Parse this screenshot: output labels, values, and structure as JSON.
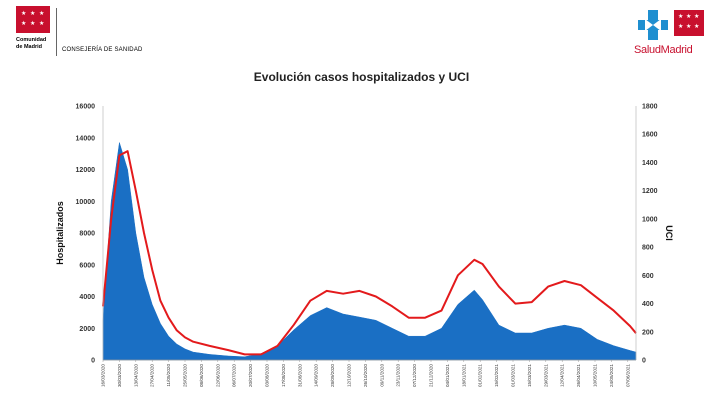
{
  "header": {
    "org_name_line1": "Comunidad",
    "org_name_line2": "de Madrid",
    "department": "CONSEJERÍA DE SANIDAD",
    "brand": "SaludMadrid",
    "brand_color": "#c8102e",
    "cross_color": "#1f8fd0",
    "cm_logo_icon": "madrid-flag-stars-icon",
    "sm_logo_icon": "salud-madrid-cross-icon"
  },
  "chart_data": {
    "type": "area+line",
    "title": "Evolución casos hospitalizados y UCI",
    "ylabel_left": "Hospitalizados",
    "ylabel_right": "UCI",
    "ylim_left": [
      0,
      16000
    ],
    "ylim_right": [
      0,
      1800
    ],
    "yticks_left": [
      "0",
      "2000",
      "4000",
      "6000",
      "8000",
      "10000",
      "12000",
      "14000",
      "16000"
    ],
    "yticks_right": [
      "0",
      "200",
      "400",
      "600",
      "800",
      "1000",
      "1200",
      "1400",
      "1600",
      "1800"
    ],
    "x_range": [
      "16/03/2020",
      "14/06/2021"
    ],
    "grid": false,
    "legend": "none",
    "series": [
      {
        "axis": "left",
        "kind": "area",
        "color": "#1a6fc4",
        "points": [
          [
            "16/03/2020",
            2500
          ],
          [
            "23/03/2020",
            10000
          ],
          [
            "30/03/2020",
            13700
          ],
          [
            "06/04/2020",
            12000
          ],
          [
            "13/04/2020",
            8000
          ],
          [
            "20/04/2020",
            5200
          ],
          [
            "27/04/2020",
            3500
          ],
          [
            "04/05/2020",
            2300
          ],
          [
            "11/05/2020",
            1500
          ],
          [
            "18/05/2020",
            1000
          ],
          [
            "25/05/2020",
            700
          ],
          [
            "01/06/2020",
            500
          ],
          [
            "15/06/2020",
            350
          ],
          [
            "01/07/2020",
            250
          ],
          [
            "15/07/2020",
            200
          ],
          [
            "29/07/2020",
            400
          ],
          [
            "12/08/2020",
            900
          ],
          [
            "26/08/2020",
            1900
          ],
          [
            "09/09/2020",
            2800
          ],
          [
            "23/09/2020",
            3300
          ],
          [
            "07/10/2020",
            2900
          ],
          [
            "21/10/2020",
            2700
          ],
          [
            "04/11/2020",
            2500
          ],
          [
            "18/11/2020",
            2000
          ],
          [
            "02/12/2020",
            1500
          ],
          [
            "16/12/2020",
            1500
          ],
          [
            "30/12/2020",
            2000
          ],
          [
            "13/01/2021",
            3500
          ],
          [
            "27/01/2021",
            4400
          ],
          [
            "03/02/2021",
            3800
          ],
          [
            "17/02/2021",
            2200
          ],
          [
            "03/03/2021",
            1700
          ],
          [
            "17/03/2021",
            1700
          ],
          [
            "31/03/2021",
            2000
          ],
          [
            "14/04/2021",
            2200
          ],
          [
            "28/04/2021",
            2000
          ],
          [
            "12/05/2021",
            1300
          ],
          [
            "26/05/2021",
            900
          ],
          [
            "09/06/2021",
            600
          ],
          [
            "14/06/2021",
            500
          ]
        ]
      },
      {
        "axis": "right",
        "kind": "line",
        "color": "#e31a1c",
        "points": [
          [
            "16/03/2020",
            380
          ],
          [
            "23/03/2020",
            1000
          ],
          [
            "30/03/2020",
            1450
          ],
          [
            "06/04/2020",
            1480
          ],
          [
            "13/04/2020",
            1200
          ],
          [
            "20/04/2020",
            900
          ],
          [
            "27/04/2020",
            640
          ],
          [
            "04/05/2020",
            420
          ],
          [
            "11/05/2020",
            300
          ],
          [
            "18/05/2020",
            210
          ],
          [
            "25/05/2020",
            160
          ],
          [
            "01/06/2020",
            130
          ],
          [
            "15/06/2020",
            100
          ],
          [
            "01/07/2020",
            70
          ],
          [
            "15/07/2020",
            40
          ],
          [
            "29/07/2020",
            40
          ],
          [
            "12/08/2020",
            100
          ],
          [
            "26/08/2020",
            250
          ],
          [
            "09/09/2020",
            420
          ],
          [
            "23/09/2020",
            490
          ],
          [
            "07/10/2020",
            470
          ],
          [
            "21/10/2020",
            490
          ],
          [
            "04/11/2020",
            450
          ],
          [
            "18/11/2020",
            380
          ],
          [
            "02/12/2020",
            300
          ],
          [
            "16/12/2020",
            300
          ],
          [
            "30/12/2020",
            350
          ],
          [
            "13/01/2021",
            600
          ],
          [
            "27/01/2021",
            710
          ],
          [
            "03/02/2021",
            680
          ],
          [
            "17/02/2021",
            520
          ],
          [
            "03/03/2021",
            400
          ],
          [
            "17/03/2021",
            410
          ],
          [
            "31/03/2021",
            520
          ],
          [
            "14/04/2021",
            560
          ],
          [
            "28/04/2021",
            530
          ],
          [
            "12/05/2021",
            440
          ],
          [
            "26/05/2021",
            350
          ],
          [
            "09/06/2021",
            240
          ],
          [
            "14/06/2021",
            190
          ]
        ]
      }
    ],
    "x_tick_labels": [
      "16/03/2020",
      "30/03/2020",
      "13/04/2020",
      "27/04/2020",
      "11/05/2020",
      "25/05/2020",
      "08/06/2020",
      "22/06/2020",
      "06/07/2020",
      "20/07/2020",
      "03/08/2020",
      "17/08/2020",
      "31/08/2020",
      "14/09/2020",
      "28/09/2020",
      "12/10/2020",
      "26/10/2020",
      "09/11/2020",
      "23/11/2020",
      "07/12/2020",
      "21/12/2020",
      "04/01/2021",
      "18/01/2021",
      "01/02/2021",
      "15/02/2021",
      "01/03/2021",
      "15/03/2021",
      "29/03/2021",
      "12/04/2021",
      "26/04/2021",
      "10/05/2021",
      "24/05/2021",
      "07/06/2021"
    ]
  }
}
